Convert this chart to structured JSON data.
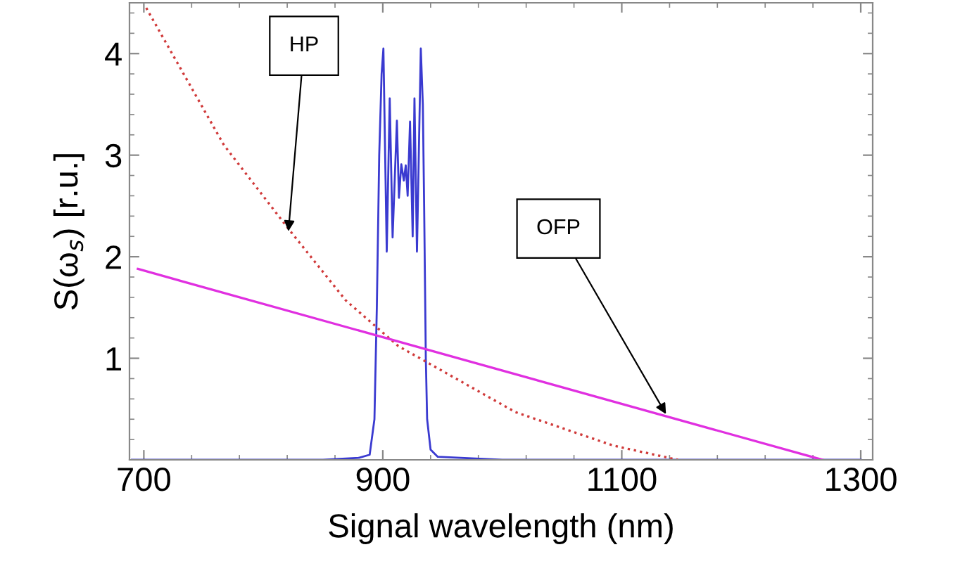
{
  "chart_data": {
    "type": "line",
    "xlabel": "Signal wavelength (nm)",
    "ylabel": "S(ω$_{s}$) [r.u.]",
    "xlim": [
      688,
      1310
    ],
    "ylim": [
      0,
      4.5
    ],
    "xticks": [
      700,
      900,
      1100,
      1300
    ],
    "yticks": [
      1,
      2,
      3,
      4
    ],
    "grid": false,
    "legend": false,
    "marker": "none",
    "series": [
      {
        "color": "#3a3ad0",
        "line_style": "solid",
        "x": [
          690,
          850,
          880,
          889,
          893,
          895,
          897,
          899,
          900.5,
          903.3,
          905.8,
          908.2,
          911.8,
          913.5,
          915.5,
          917.6,
          919.2,
          920.8,
          922.8,
          925,
          926.5,
          928.6,
          931.8,
          933.5,
          934.6,
          936,
          937.1,
          940,
          946,
          1000,
          1300
        ],
        "values": [
          0,
          0,
          0.02,
          0.05,
          0.4,
          1.5,
          3.0,
          3.8,
          4.05,
          2.05,
          3.56,
          2.19,
          3.34,
          2.58,
          2.91,
          2.75,
          2.9,
          2.6,
          3.33,
          2.2,
          3.56,
          2.05,
          4.05,
          3.5,
          2.5,
          1.0,
          0.4,
          0.1,
          0.03,
          0,
          0
        ]
      },
      {
        "color": "#d03a3a",
        "line_style": "dotted",
        "x": [
          702,
          767,
          820,
          869,
          913,
          1011,
          1093,
          1147
        ],
        "values": [
          4.45,
          3.1,
          2.29,
          1.57,
          1.12,
          0.47,
          0.14,
          0
        ]
      },
      {
        "color": "#e030e0",
        "line_style": "solid",
        "x": [
          695,
          1268
        ],
        "values": [
          1.88,
          0
        ]
      }
    ],
    "annotations": [
      {
        "text": "HP",
        "x": 821,
        "y": 2.25
      },
      {
        "text": "OFP",
        "x": 1137,
        "y": 0.45
      }
    ]
  }
}
